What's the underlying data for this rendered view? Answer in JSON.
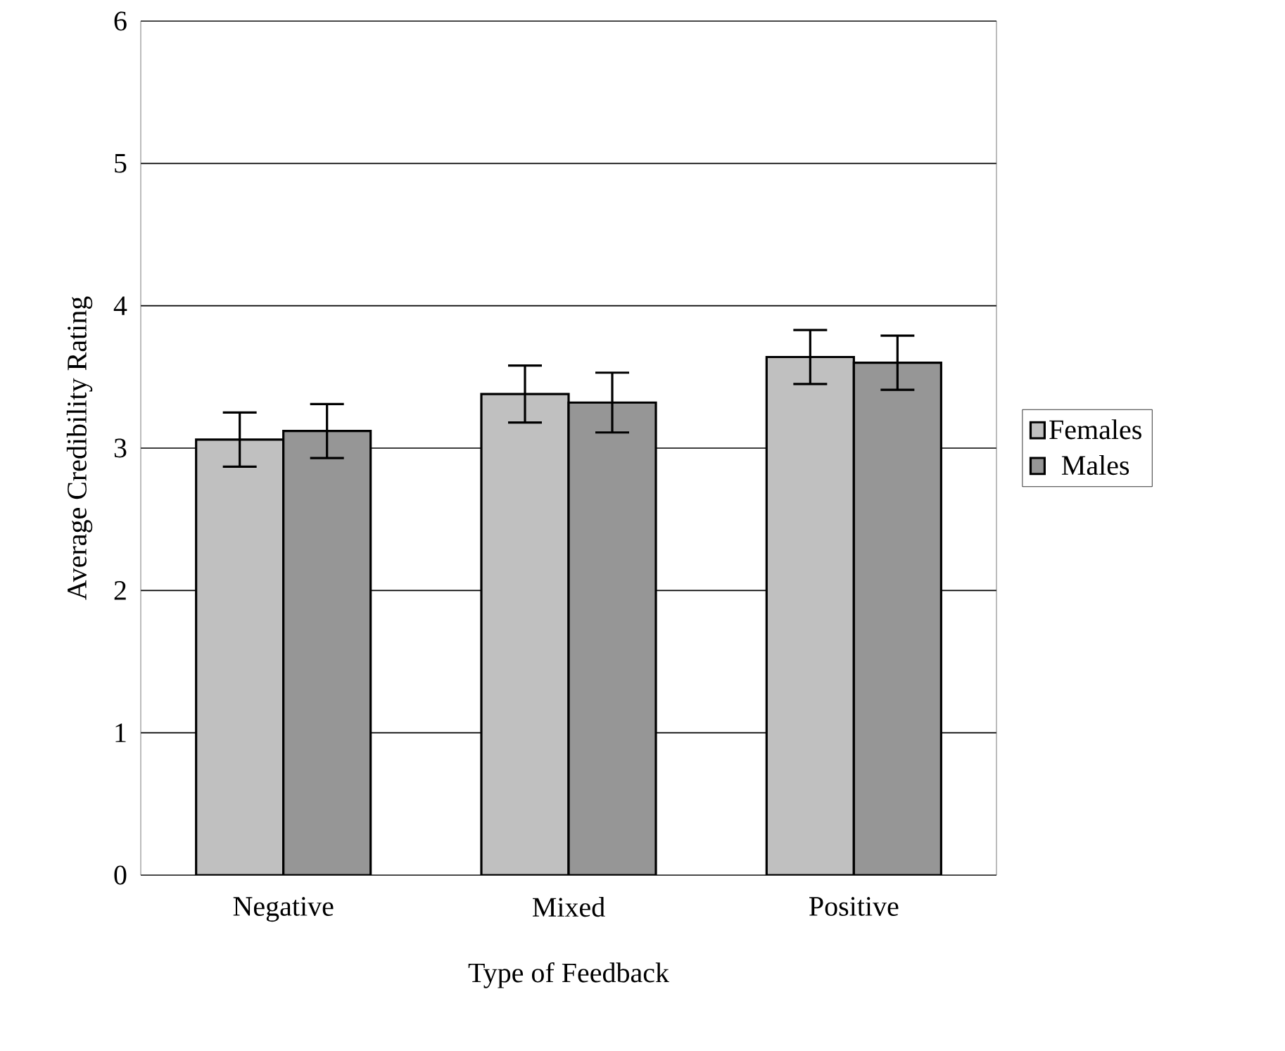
{
  "chart_data": {
    "type": "bar",
    "xlabel": "Type of Feedback",
    "ylabel": "Average Credibility Rating",
    "categories": [
      "Negative",
      "Mixed",
      "Positive"
    ],
    "series": [
      {
        "name": "Females",
        "color": "#c0c0c0",
        "values": [
          3.06,
          3.38,
          3.64
        ],
        "errors": [
          0.19,
          0.2,
          0.19
        ]
      },
      {
        "name": "Males",
        "color": "#969696",
        "values": [
          3.12,
          3.32,
          3.6
        ],
        "errors": [
          0.19,
          0.21,
          0.19
        ]
      }
    ],
    "ylim": [
      0,
      6
    ],
    "yticks": [
      0,
      1,
      2,
      3,
      4,
      5,
      6
    ],
    "grid": "y",
    "legend": "right"
  }
}
